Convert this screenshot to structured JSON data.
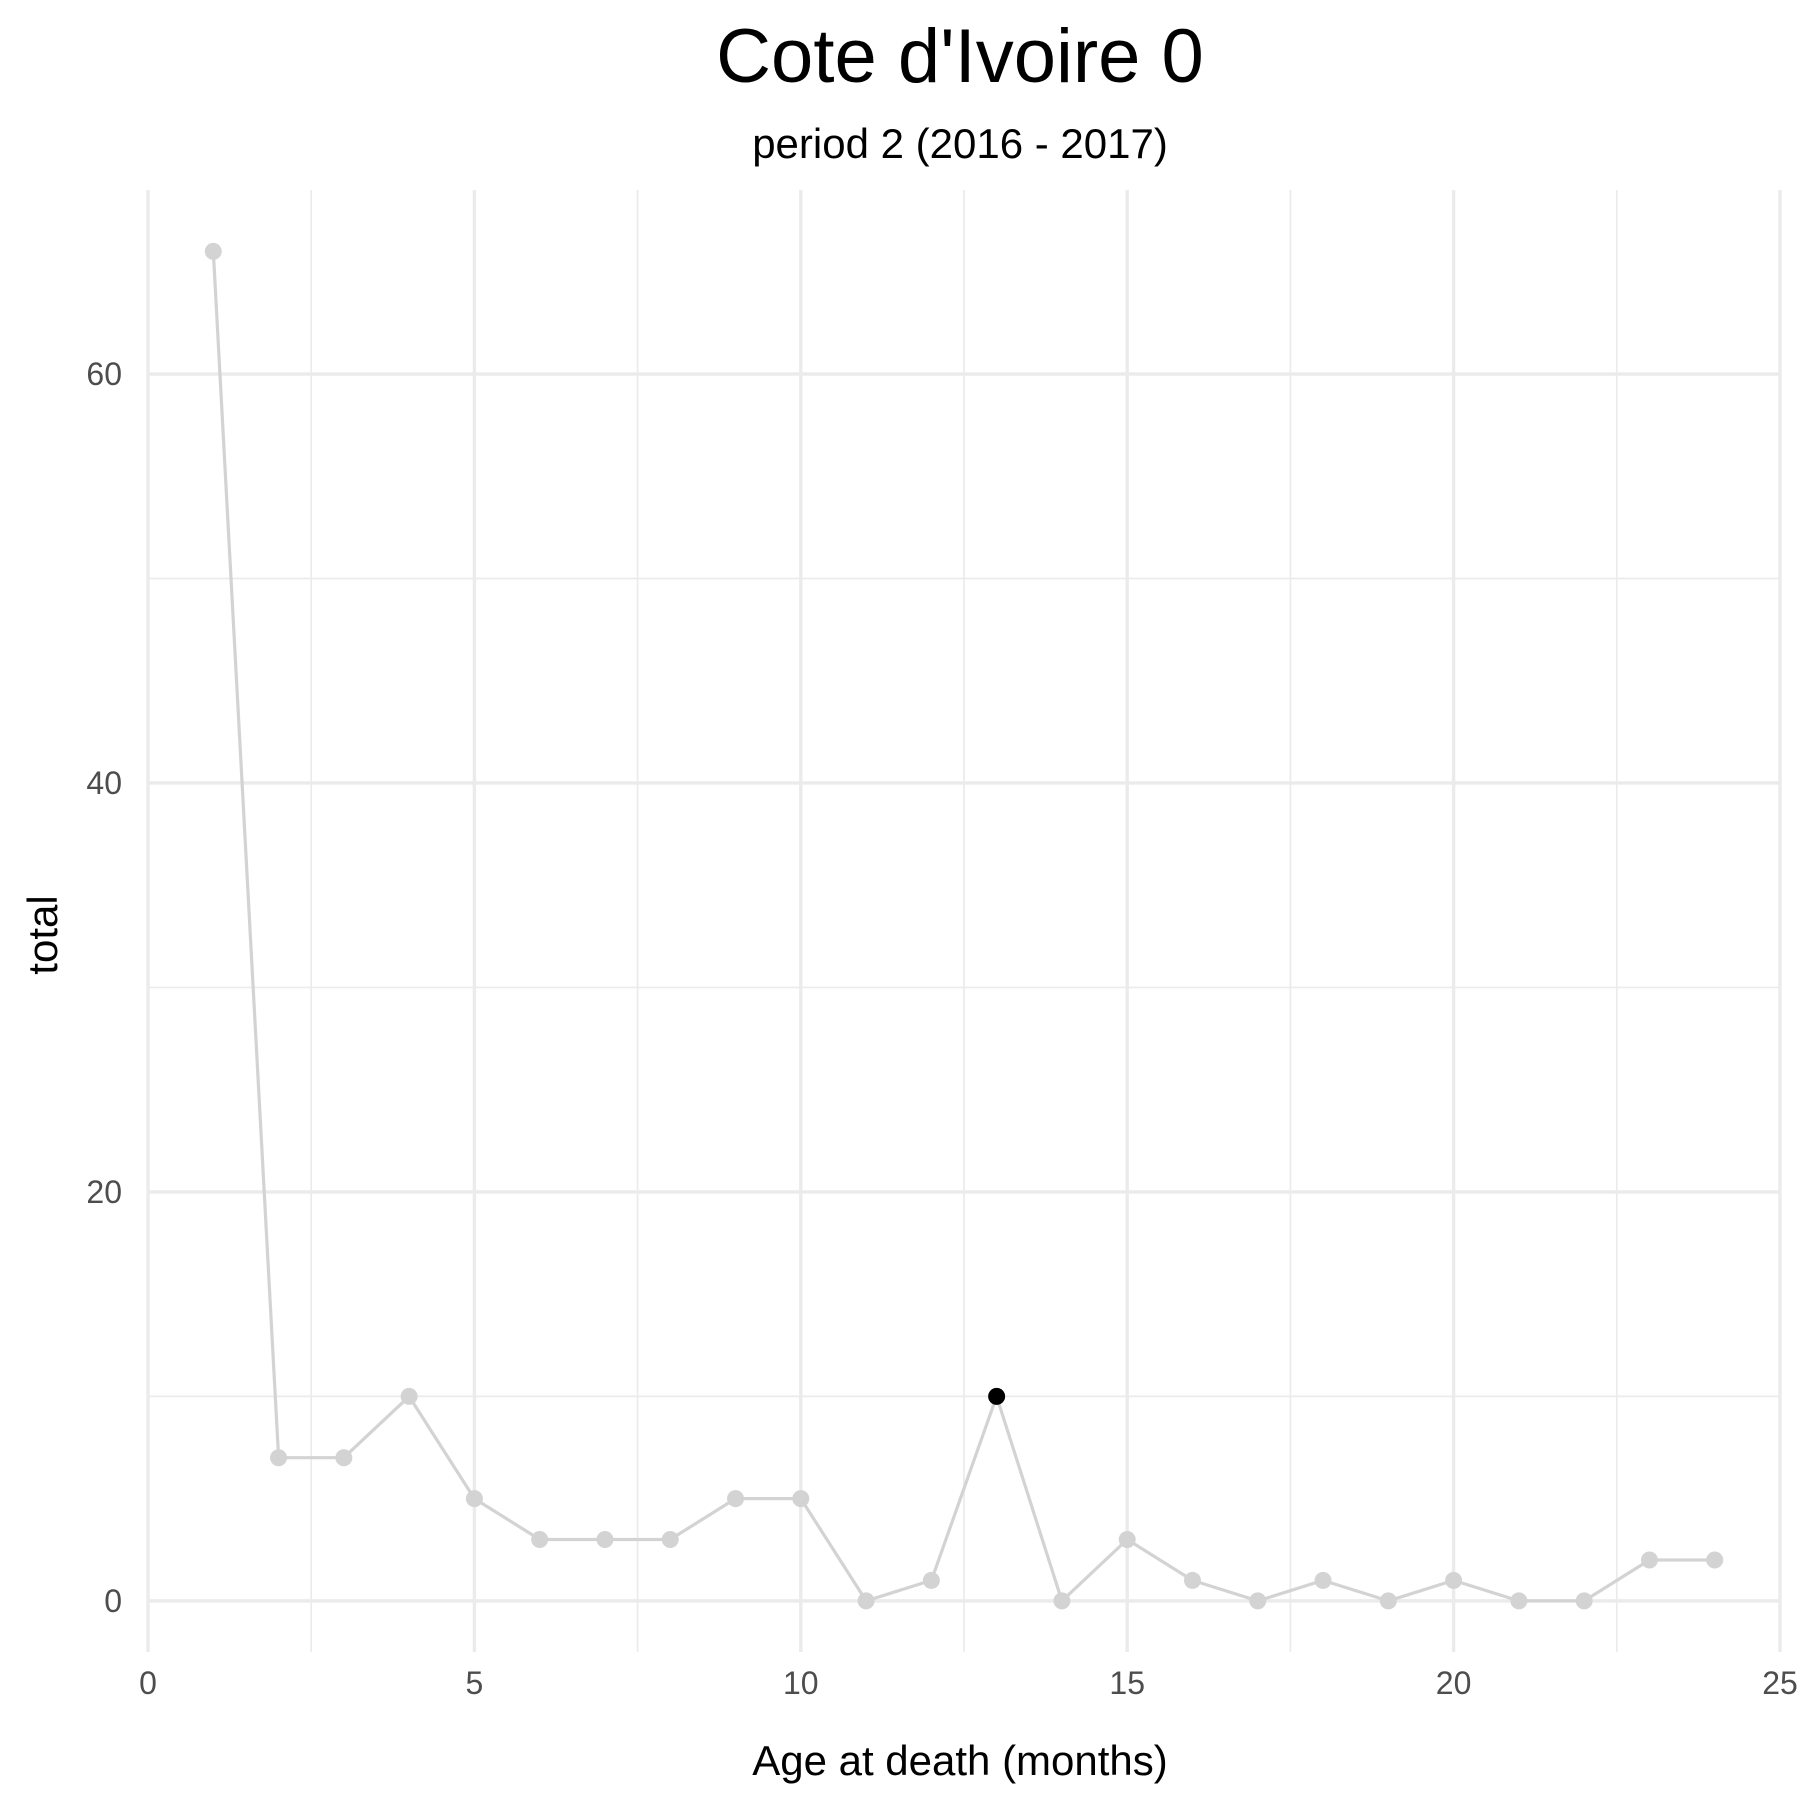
{
  "chart_data": {
    "type": "line",
    "title": "Cote d'Ivoire 0",
    "subtitle": "period 2 (2016 - 2017)",
    "xlabel": "Age at death (months)",
    "ylabel": "total",
    "xlim": [
      0,
      25
    ],
    "ylim": [
      -2.5,
      69
    ],
    "x_ticks": [
      0,
      5,
      10,
      15,
      20,
      25
    ],
    "y_ticks": [
      0,
      20,
      40,
      60
    ],
    "grid": true,
    "colors": {
      "series": "#d3d3d3",
      "highlight": "#000000"
    },
    "series": [
      {
        "x": [
          1,
          2,
          3,
          4,
          5,
          6,
          7,
          8,
          9,
          10,
          11,
          12,
          13,
          14,
          15,
          16,
          17,
          18,
          19,
          20,
          21,
          22,
          23,
          24
        ],
        "y": [
          66,
          7,
          7,
          10,
          5,
          3,
          3,
          3,
          5,
          5,
          0,
          1,
          10,
          0,
          3,
          1,
          0,
          1,
          0,
          1,
          0,
          0,
          2,
          2
        ]
      }
    ],
    "highlight": {
      "x": 13,
      "y": 10
    }
  }
}
